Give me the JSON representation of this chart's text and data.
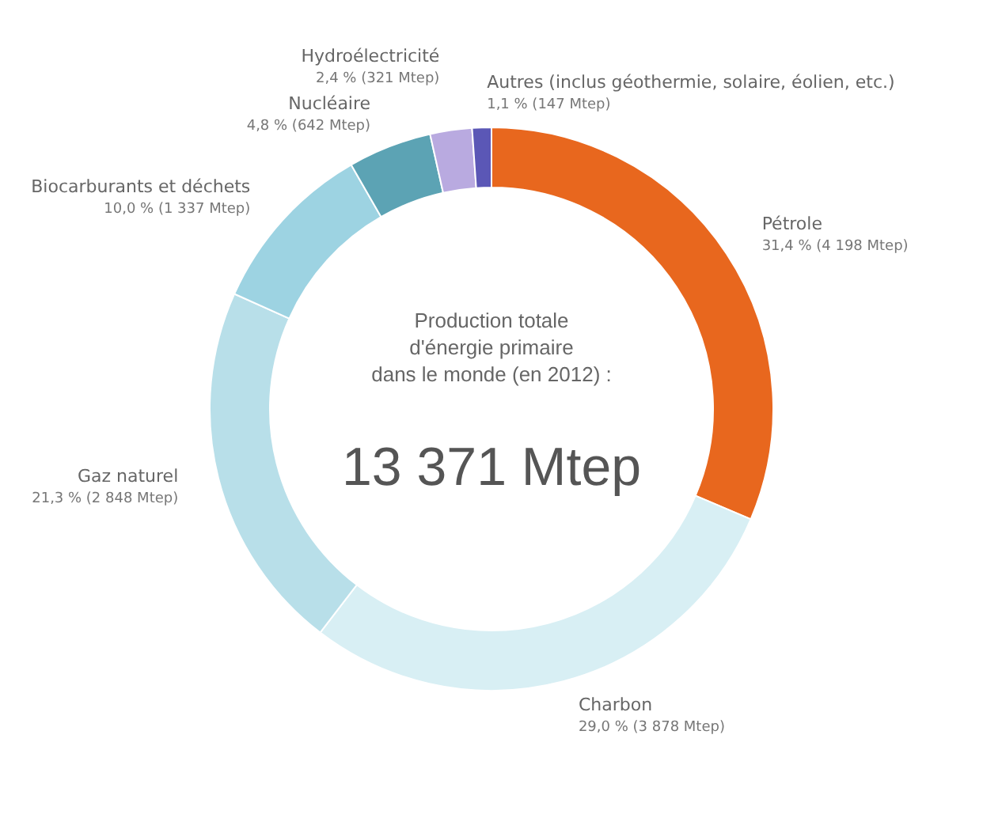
{
  "chart_data": {
    "type": "donut",
    "categories": [
      "Pétrole",
      "Charbon",
      "Gaz naturel",
      "Biocarburants et déchets",
      "Nucléaire",
      "Hydroélectricité",
      "Autres (inclus géothermie, solaire, éolien, etc.)"
    ],
    "values": [
      31.4,
      29.0,
      21.3,
      10.0,
      4.8,
      2.4,
      1.1
    ],
    "value_labels": [
      "31,4 % (4 198 Mtep)",
      "29,0 % (3 878 Mtep)",
      "21,3 % (2 848 Mtep)",
      "10,0 % (1 337 Mtep)",
      "4,8 % (642 Mtep)",
      "2,4 % (321 Mtep)",
      "1,1 % (147 Mtep)"
    ],
    "colors": [
      "#e8671e",
      "#d8eff4",
      "#b8dfe9",
      "#9dd3e2",
      "#5ca3b4",
      "#b9aae0",
      "#5b57b6"
    ],
    "annotations": [
      "Production totale",
      "d'énergie primaire",
      "dans le monde (en 2012) :",
      "13 371 Mtep"
    ]
  }
}
